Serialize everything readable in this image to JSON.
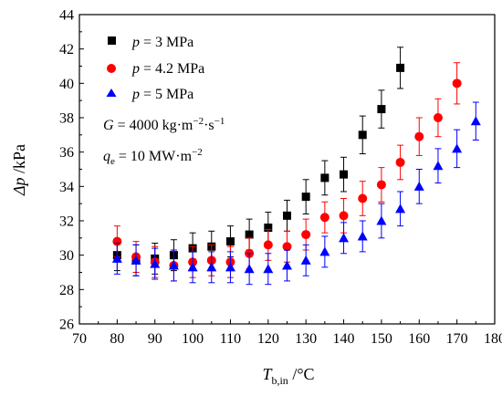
{
  "chart_data": {
    "type": "scatter",
    "xlabel": {
      "main": "T",
      "sub": "b,in",
      "unit": " /°C"
    },
    "ylabel": {
      "main": "Δp",
      "unit": " /kPa"
    },
    "xlim": [
      70,
      180
    ],
    "ylim": [
      26,
      44
    ],
    "xticks": [
      70,
      80,
      90,
      100,
      110,
      120,
      130,
      140,
      150,
      160,
      170,
      180
    ],
    "yticks": [
      26,
      28,
      30,
      32,
      34,
      36,
      38,
      40,
      42,
      44
    ],
    "grid": false,
    "legend_position": "top-left",
    "series": [
      {
        "name": "p = 3 MPa",
        "label_var": "p",
        "label_rest": " = 3 MPa",
        "marker": "square",
        "color": "#000000",
        "points": [
          {
            "x": 80,
            "y": 30.0,
            "err": 0.9
          },
          {
            "x": 85,
            "y": 29.7,
            "err": 0.9
          },
          {
            "x": 90,
            "y": 29.8,
            "err": 0.9
          },
          {
            "x": 95,
            "y": 30.0,
            "err": 0.9
          },
          {
            "x": 100,
            "y": 30.4,
            "err": 0.9
          },
          {
            "x": 105,
            "y": 30.5,
            "err": 0.9
          },
          {
            "x": 110,
            "y": 30.8,
            "err": 0.9
          },
          {
            "x": 115,
            "y": 31.2,
            "err": 0.9
          },
          {
            "x": 120,
            "y": 31.6,
            "err": 0.9
          },
          {
            "x": 125,
            "y": 32.3,
            "err": 0.9
          },
          {
            "x": 130,
            "y": 33.4,
            "err": 1.0
          },
          {
            "x": 135,
            "y": 34.5,
            "err": 1.0
          },
          {
            "x": 140,
            "y": 34.7,
            "err": 1.0
          },
          {
            "x": 145,
            "y": 37.0,
            "err": 1.1
          },
          {
            "x": 150,
            "y": 38.5,
            "err": 1.1
          },
          {
            "x": 155,
            "y": 40.9,
            "err": 1.2
          }
        ]
      },
      {
        "name": "p = 4.2 MPa",
        "label_var": "p",
        "label_rest": " = 4.2 MPa",
        "marker": "circle",
        "color": "#ff0000",
        "points": [
          {
            "x": 80,
            "y": 30.8,
            "err": 0.9
          },
          {
            "x": 85,
            "y": 29.9,
            "err": 0.9
          },
          {
            "x": 90,
            "y": 29.6,
            "err": 0.9
          },
          {
            "x": 95,
            "y": 29.4,
            "err": 0.9
          },
          {
            "x": 100,
            "y": 29.6,
            "err": 0.9
          },
          {
            "x": 105,
            "y": 29.7,
            "err": 0.9
          },
          {
            "x": 110,
            "y": 29.6,
            "err": 0.9
          },
          {
            "x": 115,
            "y": 30.1,
            "err": 0.9
          },
          {
            "x": 120,
            "y": 30.6,
            "err": 0.9
          },
          {
            "x": 125,
            "y": 30.5,
            "err": 0.9
          },
          {
            "x": 130,
            "y": 31.2,
            "err": 0.9
          },
          {
            "x": 135,
            "y": 32.2,
            "err": 0.9
          },
          {
            "x": 140,
            "y": 32.3,
            "err": 1.0
          },
          {
            "x": 145,
            "y": 33.3,
            "err": 1.0
          },
          {
            "x": 150,
            "y": 34.1,
            "err": 1.0
          },
          {
            "x": 155,
            "y": 35.4,
            "err": 1.0
          },
          {
            "x": 160,
            "y": 36.9,
            "err": 1.1
          },
          {
            "x": 165,
            "y": 38.0,
            "err": 1.1
          },
          {
            "x": 170,
            "y": 40.0,
            "err": 1.2
          }
        ]
      },
      {
        "name": "p = 5 MPa",
        "label_var": "p",
        "label_rest": " = 5 MPa",
        "marker": "triangle",
        "color": "#0000ff",
        "points": [
          {
            "x": 80,
            "y": 29.8,
            "err": 0.9
          },
          {
            "x": 85,
            "y": 29.7,
            "err": 0.9
          },
          {
            "x": 90,
            "y": 29.5,
            "err": 0.9
          },
          {
            "x": 95,
            "y": 29.4,
            "err": 0.9
          },
          {
            "x": 100,
            "y": 29.3,
            "err": 0.9
          },
          {
            "x": 105,
            "y": 29.3,
            "err": 0.9
          },
          {
            "x": 110,
            "y": 29.3,
            "err": 0.9
          },
          {
            "x": 115,
            "y": 29.2,
            "err": 0.9
          },
          {
            "x": 120,
            "y": 29.2,
            "err": 0.9
          },
          {
            "x": 125,
            "y": 29.4,
            "err": 0.9
          },
          {
            "x": 130,
            "y": 29.7,
            "err": 0.9
          },
          {
            "x": 135,
            "y": 30.2,
            "err": 0.9
          },
          {
            "x": 140,
            "y": 31.0,
            "err": 0.9
          },
          {
            "x": 145,
            "y": 31.1,
            "err": 0.9
          },
          {
            "x": 150,
            "y": 32.0,
            "err": 1.0
          },
          {
            "x": 155,
            "y": 32.7,
            "err": 1.0
          },
          {
            "x": 160,
            "y": 34.0,
            "err": 1.0
          },
          {
            "x": 165,
            "y": 35.2,
            "err": 1.0
          },
          {
            "x": 170,
            "y": 36.2,
            "err": 1.1
          },
          {
            "x": 175,
            "y": 37.8,
            "err": 1.1
          }
        ]
      }
    ],
    "annotations": [
      {
        "var": "G",
        "rest": " = 4000 kg·m",
        "sup1": "−2",
        "rest2": "·s",
        "sup2": "−1"
      },
      {
        "var": "q",
        "sub": "e",
        "rest": " = 10 MW·m",
        "sup1": "−2"
      }
    ]
  }
}
